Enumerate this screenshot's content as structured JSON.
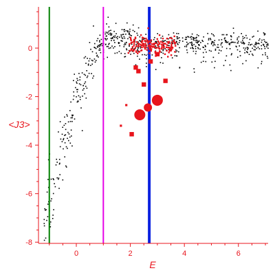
{
  "chart_data": {
    "type": "scatter",
    "title": "",
    "xlabel": "E",
    "ylabel": "<J3>",
    "xlim": [
      -1.4,
      7.1
    ],
    "ylim": [
      -8.05,
      1.7
    ],
    "x_ticks": [
      0,
      2,
      4,
      6
    ],
    "y_ticks": [
      0,
      -2,
      -4,
      -6,
      -8
    ],
    "grid": false,
    "colors": {
      "axis": "#e8141c",
      "black_points": "#000000",
      "red_points": "#e8141c",
      "line_green": "#008000",
      "line_magenta": "#e600e6",
      "line_blue": "#0b22e0"
    },
    "vertical_lines": [
      {
        "x": -1.0,
        "color": "#008000"
      },
      {
        "x": 1.0,
        "color": "#e600e6"
      },
      {
        "x": 2.7,
        "color": "#0b22e0"
      }
    ],
    "large_red_markers": [
      {
        "x": 2.35,
        "y": -2.75,
        "size": 3
      },
      {
        "x": 2.65,
        "y": -2.45,
        "size": 2
      },
      {
        "x": 3.0,
        "y": -2.15,
        "size": 3
      },
      {
        "x": 2.05,
        "y": -3.55,
        "size": 1
      },
      {
        "x": 2.5,
        "y": -1.5,
        "size": 1
      },
      {
        "x": 3.3,
        "y": -1.35,
        "size": 1
      },
      {
        "x": 2.3,
        "y": -0.95,
        "size": 1
      },
      {
        "x": 2.2,
        "y": -0.8,
        "size": 1
      },
      {
        "x": 2.75,
        "y": -0.55,
        "size": 1
      },
      {
        "x": 3.0,
        "y": -0.25,
        "size": 1
      },
      {
        "x": 1.65,
        "y": -3.2,
        "size": 0
      },
      {
        "x": 1.85,
        "y": -2.35,
        "size": 0
      }
    ]
  }
}
